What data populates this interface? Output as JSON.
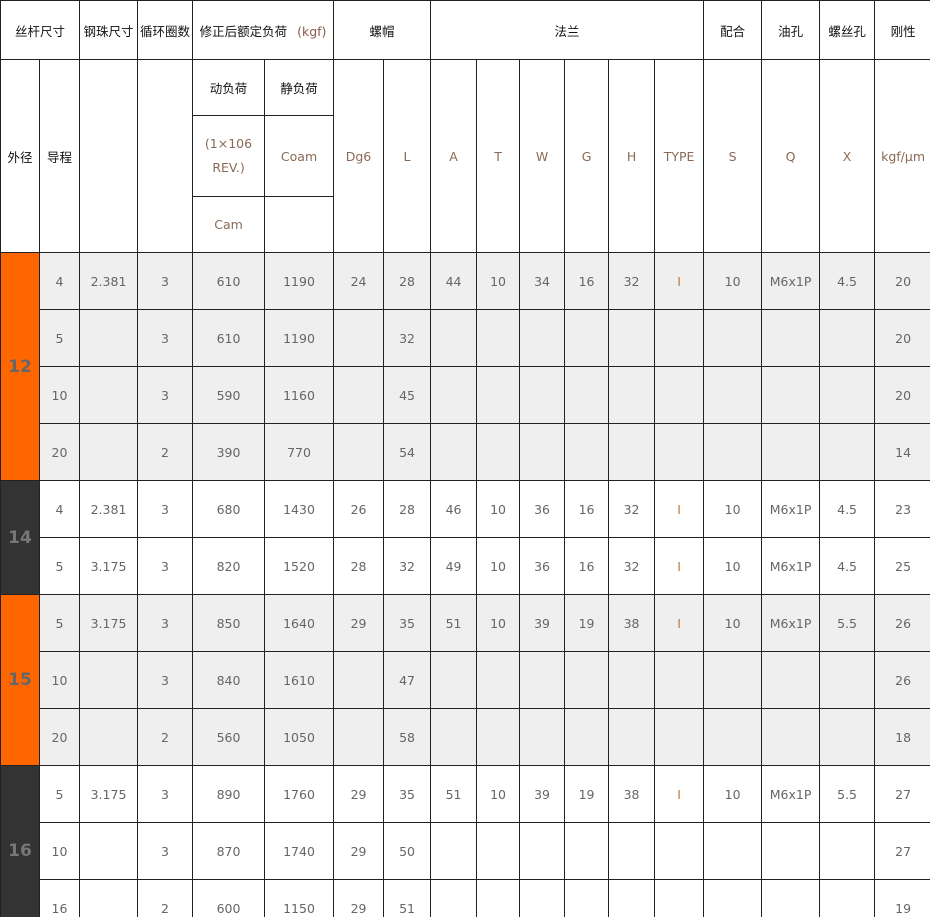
{
  "header": {
    "screw_size": "丝杆尺寸",
    "ball_size": "钢珠尺寸",
    "circuits": "循环圈数",
    "rated_load": "修正后额定负荷",
    "rated_load_unit": "(kgf)",
    "nut": "螺帽",
    "flange": "法兰",
    "fit": "配合",
    "oil_hole": "油孔",
    "screw_hole": "螺丝孔",
    "rigidity": "刚性",
    "outer_dia": "外径",
    "lead": "导程",
    "dynamic_load": "动负荷",
    "static_load": "静负荷",
    "dynamic_rev": "(1×106 REV.)",
    "coam": "Coam",
    "cam": "Cam",
    "dg6": "Dg6",
    "L": "L",
    "A": "A",
    "T": "T",
    "W": "W",
    "G": "G",
    "H": "H",
    "TYPE": "TYPE",
    "S": "S",
    "Q": "Q",
    "X": "X",
    "rigidity_unit": "kgf/μm"
  },
  "colors": {
    "orange": "#ff6600",
    "dark": "#333333",
    "row_gray": "#efefef"
  },
  "groups": [
    {
      "outer_dia": "12",
      "style": "orange",
      "shade": true,
      "rows": [
        [
          "4",
          "2.381",
          "3",
          "610",
          "1190",
          "24",
          "28",
          "44",
          "10",
          "34",
          "16",
          "32",
          "I",
          "10",
          "M6x1P",
          "4.5",
          "20"
        ],
        [
          "5",
          "",
          "3",
          "610",
          "1190",
          "",
          "32",
          "",
          "",
          "",
          "",
          "",
          "",
          "",
          "",
          "",
          "20"
        ],
        [
          "10",
          "",
          "3",
          "590",
          "1160",
          "",
          "45",
          "",
          "",
          "",
          "",
          "",
          "",
          "",
          "",
          "",
          "20"
        ],
        [
          "20",
          "",
          "2",
          "390",
          "770",
          "",
          "54",
          "",
          "",
          "",
          "",
          "",
          "",
          "",
          "",
          "",
          "14"
        ]
      ]
    },
    {
      "outer_dia": "14",
      "style": "dark",
      "shade": false,
      "rows": [
        [
          "4",
          "2.381",
          "3",
          "680",
          "1430",
          "26",
          "28",
          "46",
          "10",
          "36",
          "16",
          "32",
          "I",
          "10",
          "M6x1P",
          "4.5",
          "23"
        ],
        [
          "5",
          "3.175",
          "3",
          "820",
          "1520",
          "28",
          "32",
          "49",
          "10",
          "36",
          "16",
          "32",
          "I",
          "10",
          "M6x1P",
          "4.5",
          "25"
        ]
      ]
    },
    {
      "outer_dia": "15",
      "style": "orange",
      "shade": true,
      "rows": [
        [
          "5",
          "3.175",
          "3",
          "850",
          "1640",
          "29",
          "35",
          "51",
          "10",
          "39",
          "19",
          "38",
          "I",
          "10",
          "M6x1P",
          "5.5",
          "26"
        ],
        [
          "10",
          "",
          "3",
          "840",
          "1610",
          "",
          "47",
          "",
          "",
          "",
          "",
          "",
          "",
          "",
          "",
          "",
          "26"
        ],
        [
          "20",
          "",
          "2",
          "560",
          "1050",
          "",
          "58",
          "",
          "",
          "",
          "",
          "",
          "",
          "",
          "",
          "",
          "18"
        ]
      ]
    },
    {
      "outer_dia": "16",
      "style": "dark",
      "shade": false,
      "rows": [
        [
          "5",
          "3.175",
          "3",
          "890",
          "1760",
          "29",
          "35",
          "51",
          "10",
          "39",
          "19",
          "38",
          "I",
          "10",
          "M6x1P",
          "5.5",
          "27"
        ],
        [
          "10",
          "",
          "3",
          "870",
          "1740",
          "29",
          "50",
          "",
          "",
          "",
          "",
          "",
          "",
          "",
          "",
          "",
          "27"
        ],
        [
          "16",
          "",
          "2",
          "600",
          "1150",
          "29",
          "51",
          "",
          "",
          "",
          "",
          "",
          "",
          "",
          "",
          "",
          "19"
        ]
      ]
    }
  ]
}
